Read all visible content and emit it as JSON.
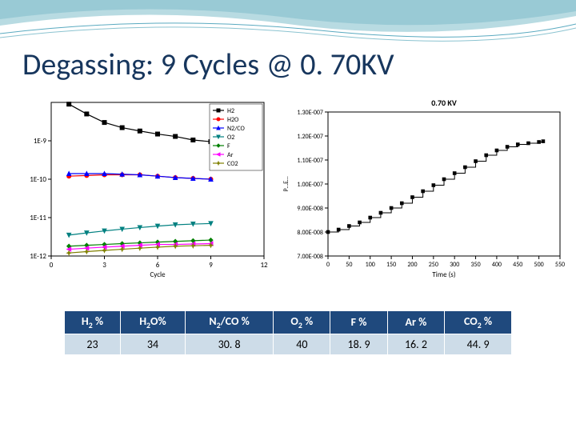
{
  "title": "Degassing: 9 Cycles @ 0. 70KV",
  "title_color": "#17365d",
  "wave_colors": [
    "#b8dbe2",
    "#8bc3d0",
    "#5aaac0"
  ],
  "chart_left": {
    "type": "line",
    "x_label": "Cycle",
    "y_label": null,
    "xlim": [
      0,
      12
    ],
    "xticks": [
      0,
      3,
      6,
      9,
      12
    ],
    "ylim_log": [
      1e-12,
      1e-08
    ],
    "yticks": [
      "1E-9",
      "1E-10",
      "1E-11",
      "1E-12"
    ],
    "ytick_vals": [
      1e-09,
      1e-10,
      1e-11,
      1e-12
    ],
    "background": "#ffffff",
    "axis_color": "#000000",
    "font_size": 9,
    "series": [
      {
        "name": "H2",
        "color": "#000000",
        "marker": "square",
        "x": [
          1,
          2,
          3,
          4,
          5,
          6,
          7,
          8,
          9
        ],
        "y": [
          9e-09,
          5e-09,
          3e-09,
          2.2e-09,
          1.8e-09,
          1.5e-09,
          1.3e-09,
          1.05e-09,
          9.5e-10
        ]
      },
      {
        "name": "H2O",
        "color": "#ff0000",
        "marker": "circle",
        "x": [
          1,
          2,
          3,
          4,
          5,
          6,
          7,
          8,
          9
        ],
        "y": [
          1.2e-10,
          1.25e-10,
          1.3e-10,
          1.3e-10,
          1.3e-10,
          1.2e-10,
          1.1e-10,
          1.05e-10,
          1e-10
        ]
      },
      {
        "name": "N2/CO",
        "color": "#0000ff",
        "marker": "triangle",
        "x": [
          1,
          2,
          3,
          4,
          5,
          6,
          7,
          8,
          9
        ],
        "y": [
          1.4e-10,
          1.4e-10,
          1.4e-10,
          1.35e-10,
          1.3e-10,
          1.2e-10,
          1.1e-10,
          1.05e-10,
          1e-10
        ]
      },
      {
        "name": "O2",
        "color": "#008080",
        "marker": "invtriangle",
        "x": [
          1,
          2,
          3,
          4,
          5,
          6,
          7,
          8,
          9
        ],
        "y": [
          3.5e-12,
          4e-12,
          4.5e-12,
          5e-12,
          5.5e-12,
          6e-12,
          6.5e-12,
          6.8e-12,
          7e-12
        ]
      },
      {
        "name": "F",
        "color": "#008000",
        "marker": "diamond",
        "x": [
          1,
          2,
          3,
          4,
          5,
          6,
          7,
          8,
          9
        ],
        "y": [
          1.8e-12,
          1.9e-12,
          2e-12,
          2.1e-12,
          2.2e-12,
          2.3e-12,
          2.4e-12,
          2.5e-12,
          2.6e-12
        ]
      },
      {
        "name": "Ar",
        "color": "#ff00ff",
        "marker": "ltriangle",
        "x": [
          1,
          2,
          3,
          4,
          5,
          6,
          7,
          8,
          9
        ],
        "y": [
          1.5e-12,
          1.6e-12,
          1.7e-12,
          1.8e-12,
          1.9e-12,
          2e-12,
          2e-12,
          2.05e-12,
          2.1e-12
        ]
      },
      {
        "name": "CO2",
        "color": "#808000",
        "marker": "star",
        "x": [
          1,
          2,
          3,
          4,
          5,
          6,
          7,
          8,
          9
        ],
        "y": [
          1.2e-12,
          1.3e-12,
          1.4e-12,
          1.5e-12,
          1.6e-12,
          1.7e-12,
          1.8e-12,
          1.85e-12,
          1.9e-12
        ]
      }
    ]
  },
  "chart_right": {
    "type": "line",
    "title": "0.70 KV",
    "x_label": "Time (s)",
    "y_label": "P…E…",
    "xlim": [
      0,
      550
    ],
    "xticks": [
      0,
      50,
      100,
      150,
      200,
      250,
      300,
      350,
      400,
      450,
      500,
      550
    ],
    "ylim": [
      7e-08,
      1.3e-07
    ],
    "yticks": [
      "1.30E-007",
      "1.20E-007",
      "1.10E-007",
      "1.00E-007",
      "9.00E-008",
      "8.00E-008",
      "7.00E-008"
    ],
    "ytick_vals": [
      1.3e-07,
      1.2e-07,
      1.1e-07,
      1e-07,
      9e-08,
      8e-08,
      7e-08
    ],
    "background": "#ffffff",
    "axis_color": "#000000",
    "font_size": 9,
    "series": [
      {
        "name": "pressure",
        "color": "#000000",
        "marker": "square",
        "x": [
          0,
          25,
          50,
          75,
          100,
          125,
          150,
          175,
          200,
          225,
          250,
          275,
          300,
          325,
          350,
          375,
          400,
          425,
          450,
          475,
          500,
          510
        ],
        "y": [
          8e-08,
          8.1e-08,
          8.25e-08,
          8.4e-08,
          8.6e-08,
          8.8e-08,
          9e-08,
          9.2e-08,
          9.45e-08,
          9.7e-08,
          9.95e-08,
          1.02e-07,
          1.045e-07,
          1.07e-07,
          1.095e-07,
          1.12e-07,
          1.14e-07,
          1.155e-07,
          1.165e-07,
          1.17e-07,
          1.175e-07,
          1.178e-07
        ]
      }
    ]
  },
  "table": {
    "header_bg": "#1f497d",
    "header_fg": "#ffffff",
    "row_bg": "#cddce8",
    "columns": [
      "H2 %",
      "H2O%",
      "N2/CO %",
      "O2 %",
      "F %",
      "Ar %",
      "CO2 %"
    ],
    "columns_html": [
      "H<span class='sub'>2</span> %",
      "H<span class='sub'>2</span>O%",
      "N<span class='sub'>2</span>/CO %",
      "O<span class='sub'>2</span> %",
      "F %",
      "Ar %",
      "CO<span class='sub'>2</span> %"
    ],
    "rows": [
      [
        "23",
        "34",
        "30. 8",
        "40",
        "18. 9",
        "16. 2",
        "44. 9"
      ]
    ]
  }
}
